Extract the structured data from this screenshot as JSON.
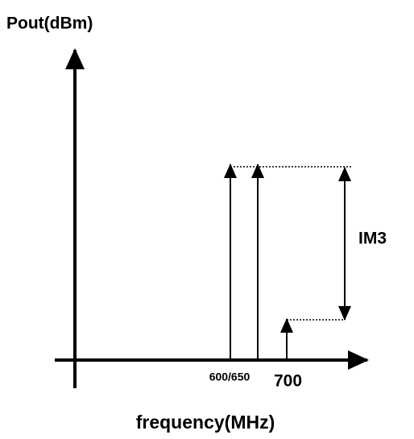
{
  "y_axis_label": "Pout(dBm)",
  "x_axis_label": "frequency(MHz)",
  "tone_label": "600/650",
  "im_label": "700",
  "gap_label": "IM3"
}
